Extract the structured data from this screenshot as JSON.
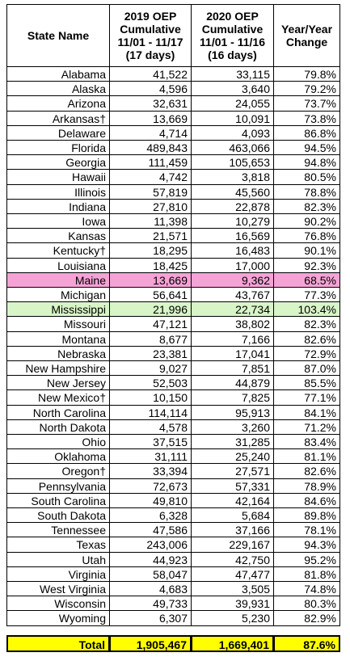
{
  "table": {
    "header": [
      [
        "State Name"
      ],
      [
        "2019 OEP",
        "Cumulative",
        "11/01 - 11/17",
        "(17 days)"
      ],
      [
        "2020 OEP",
        "Cumulative",
        "11/01 - 11/16",
        "(16 days)"
      ],
      [
        "Year/Year",
        "Change"
      ]
    ],
    "rows": [
      {
        "cells": [
          "Alabama",
          "41,522",
          "33,115",
          "79.8%"
        ]
      },
      {
        "cells": [
          "Alaska",
          "4,596",
          "3,640",
          "79.2%"
        ]
      },
      {
        "cells": [
          "Arizona",
          "32,631",
          "24,055",
          "73.7%"
        ]
      },
      {
        "cells": [
          "Arkansas†",
          "13,669",
          "10,091",
          "73.8%"
        ]
      },
      {
        "cells": [
          "Delaware",
          "4,714",
          "4,093",
          "86.8%"
        ]
      },
      {
        "cells": [
          "Florida",
          "489,843",
          "463,066",
          "94.5%"
        ]
      },
      {
        "cells": [
          "Georgia",
          "111,459",
          "105,653",
          "94.8%"
        ]
      },
      {
        "cells": [
          "Hawaii",
          "4,742",
          "3,818",
          "80.5%"
        ]
      },
      {
        "cells": [
          "Illinois",
          "57,819",
          "45,560",
          "78.8%"
        ]
      },
      {
        "cells": [
          "Indiana",
          "27,810",
          "22,878",
          "82.3%"
        ]
      },
      {
        "cells": [
          "Iowa",
          "11,398",
          "10,279",
          "90.2%"
        ]
      },
      {
        "cells": [
          "Kansas",
          "21,571",
          "16,569",
          "76.8%"
        ]
      },
      {
        "cells": [
          "Kentucky†",
          "18,295",
          "16,483",
          "90.1%"
        ]
      },
      {
        "cells": [
          "Louisiana",
          "18,425",
          "17,000",
          "92.3%"
        ]
      },
      {
        "cells": [
          "Maine",
          "13,669",
          "9,362",
          "68.5%"
        ],
        "highlight": "#f5a3d6"
      },
      {
        "cells": [
          "Michigan",
          "56,641",
          "43,767",
          "77.3%"
        ]
      },
      {
        "cells": [
          "Mississippi",
          "21,996",
          "22,734",
          "103.4%"
        ],
        "highlight": "#d8f5c8"
      },
      {
        "cells": [
          "Missouri",
          "47,121",
          "38,802",
          "82.3%"
        ]
      },
      {
        "cells": [
          "Montana",
          "8,677",
          "7,166",
          "82.6%"
        ]
      },
      {
        "cells": [
          "Nebraska",
          "23,381",
          "17,041",
          "72.9%"
        ]
      },
      {
        "cells": [
          "New Hampshire",
          "9,027",
          "7,851",
          "87.0%"
        ]
      },
      {
        "cells": [
          "New Jersey",
          "52,503",
          "44,879",
          "85.5%"
        ]
      },
      {
        "cells": [
          "New Mexico†",
          "10,150",
          "7,825",
          "77.1%"
        ]
      },
      {
        "cells": [
          "North Carolina",
          "114,114",
          "95,913",
          "84.1%"
        ]
      },
      {
        "cells": [
          "North Dakota",
          "4,578",
          "3,260",
          "71.2%"
        ]
      },
      {
        "cells": [
          "Ohio",
          "37,515",
          "31,285",
          "83.4%"
        ]
      },
      {
        "cells": [
          "Oklahoma",
          "31,111",
          "25,240",
          "81.1%"
        ]
      },
      {
        "cells": [
          "Oregon†",
          "33,394",
          "27,571",
          "82.6%"
        ]
      },
      {
        "cells": [
          "Pennsylvania",
          "72,673",
          "57,331",
          "78.9%"
        ]
      },
      {
        "cells": [
          "South Carolina",
          "49,810",
          "42,164",
          "84.6%"
        ]
      },
      {
        "cells": [
          "South Dakota",
          "6,328",
          "5,684",
          "89.8%"
        ]
      },
      {
        "cells": [
          "Tennessee",
          "47,586",
          "37,166",
          "78.1%"
        ]
      },
      {
        "cells": [
          "Texas",
          "243,006",
          "229,167",
          "94.3%"
        ]
      },
      {
        "cells": [
          "Utah",
          "44,923",
          "42,750",
          "95.2%"
        ]
      },
      {
        "cells": [
          "Virginia",
          "58,047",
          "47,477",
          "81.8%"
        ]
      },
      {
        "cells": [
          "West Virginia",
          "4,683",
          "3,505",
          "74.8%"
        ]
      },
      {
        "cells": [
          "Wisconsin",
          "49,733",
          "39,931",
          "80.3%"
        ]
      },
      {
        "cells": [
          "Wyoming",
          "6,307",
          "5,230",
          "82.9%"
        ]
      }
    ],
    "total": {
      "cells": [
        "Total",
        "1,905,467",
        "1,669,401",
        "87.6%"
      ],
      "highlight": "#ffff00"
    }
  }
}
